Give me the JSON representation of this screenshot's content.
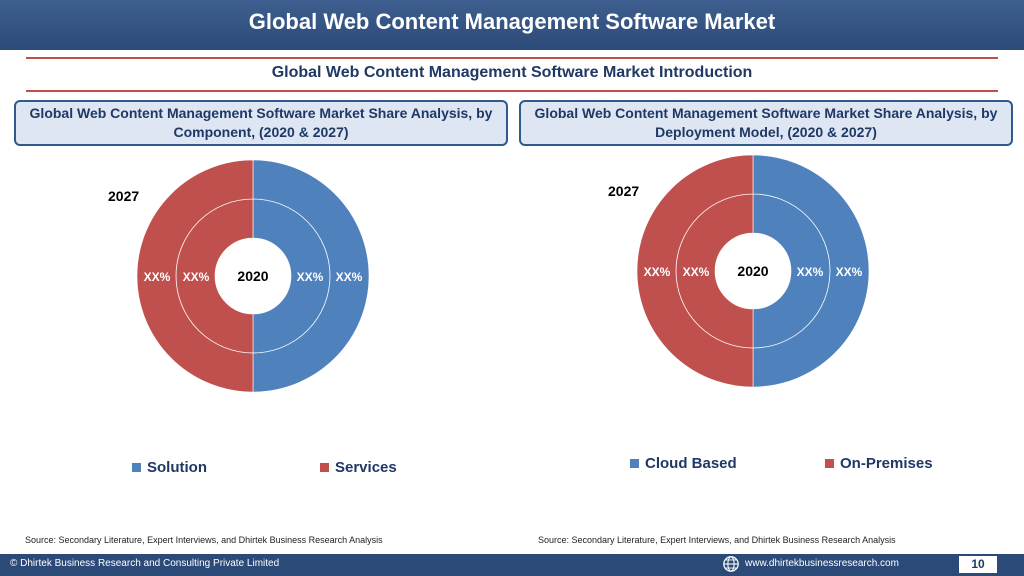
{
  "header": {
    "title": "Global Web Content Management Software Market"
  },
  "subtitle": "Global Web Content Management Software Market Introduction",
  "colors": {
    "blue": "#4f81bd",
    "red": "#c0504d",
    "header_bg": "#2c4a78",
    "accent_line": "#c0504d"
  },
  "panels": [
    {
      "title": "Global Web Content Management Software Market Share Analysis, by Component, (2020 & 2027)",
      "outer_label": "2027",
      "inner_label": "2020",
      "value_labels": [
        "XX%",
        "XX%",
        "XX%",
        "XX%"
      ],
      "legend": [
        "Solution",
        "Services"
      ],
      "source": "Source: Secondary Literature, Expert Interviews, and Dhirtek Business Research Analysis"
    },
    {
      "title": "Global Web Content Management Software Market Share Analysis, by Deployment Model, (2020 & 2027)",
      "outer_label": "2027",
      "inner_label": "2020",
      "value_labels": [
        "XX%",
        "XX%",
        "XX%",
        "XX%"
      ],
      "legend": [
        "Cloud Based",
        "On-Premises"
      ],
      "source": "Source: Secondary Literature, Expert Interviews, and Dhirtek Business Research Analysis"
    }
  ],
  "chart_data": [
    {
      "type": "pie",
      "rings": [
        {
          "name": "2020",
          "categories": [
            "Solution",
            "Services"
          ],
          "values": [
            50,
            50
          ]
        },
        {
          "name": "2027",
          "categories": [
            "Solution",
            "Services"
          ],
          "values": [
            50,
            50
          ]
        }
      ]
    },
    {
      "type": "pie",
      "rings": [
        {
          "name": "2020",
          "categories": [
            "Cloud Based",
            "On-Premises"
          ],
          "values": [
            50,
            50
          ]
        },
        {
          "name": "2027",
          "categories": [
            "Cloud Based",
            "On-Premises"
          ],
          "values": [
            50,
            50
          ]
        }
      ]
    }
  ],
  "footer": {
    "copyright": "© Dhirtek Business Research and Consulting Private Limited",
    "website": "www.dhirtekbusinessresearch.com",
    "page": "10"
  }
}
